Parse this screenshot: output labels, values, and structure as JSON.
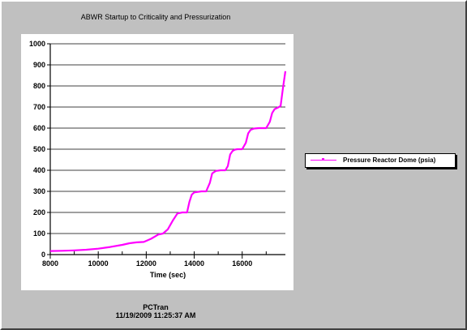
{
  "chart_data": {
    "type": "line",
    "title": "ABWR Startup to Criticality and Pressurization",
    "xlabel": "Time (sec)",
    "ylabel": "",
    "xlim": [
      8000,
      17800
    ],
    "ylim": [
      0,
      1000
    ],
    "x_ticks": [
      8000,
      10000,
      12000,
      14000,
      16000
    ],
    "y_ticks": [
      0,
      100,
      200,
      300,
      400,
      500,
      600,
      700,
      800,
      900,
      1000
    ],
    "grid": "horizontal",
    "legend_position": "right",
    "series": [
      {
        "name": "Pressure Reactor Dome (psia)",
        "color": "#ff00ff",
        "x": [
          8000,
          8500,
          9000,
          9500,
          10000,
          10500,
          11000,
          11300,
          11600,
          11900,
          12200,
          12500,
          12700,
          12900,
          13100,
          13300,
          13500,
          13700,
          13800,
          13900,
          14000,
          14300,
          14500,
          14650,
          14750,
          14900,
          15100,
          15300,
          15400,
          15500,
          15600,
          15700,
          15800,
          16000,
          16150,
          16250,
          16350,
          16500,
          16700,
          17000,
          17150,
          17250,
          17350,
          17500,
          17600,
          17700,
          17800
        ],
        "y": [
          17,
          18,
          20,
          23,
          28,
          36,
          46,
          54,
          58,
          60,
          75,
          95,
          100,
          120,
          160,
          195,
          200,
          200,
          250,
          285,
          295,
          300,
          300,
          340,
          385,
          397,
          400,
          400,
          420,
          475,
          492,
          498,
          500,
          500,
          530,
          575,
          592,
          598,
          600,
          600,
          630,
          672,
          690,
          698,
          705,
          790,
          870
        ]
      }
    ]
  },
  "footer": {
    "app": "PCTran",
    "timestamp": "11/19/2009 11:25:37 AM"
  }
}
